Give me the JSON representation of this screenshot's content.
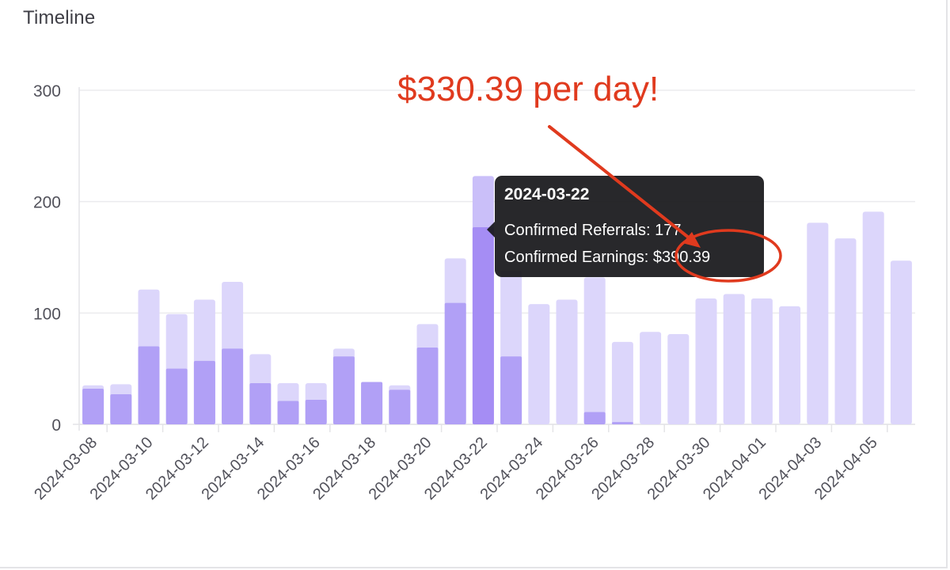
{
  "panel": {
    "title": "Timeline"
  },
  "chart_data": {
    "type": "bar",
    "stacked_overlap": true,
    "categories": [
      "2024-03-08",
      "2024-03-09",
      "2024-03-10",
      "2024-03-11",
      "2024-03-12",
      "2024-03-13",
      "2024-03-14",
      "2024-03-15",
      "2024-03-16",
      "2024-03-17",
      "2024-03-18",
      "2024-03-19",
      "2024-03-20",
      "2024-03-21",
      "2024-03-22",
      "2024-03-23",
      "2024-03-24",
      "2024-03-25",
      "2024-03-26",
      "2024-03-27",
      "2024-03-28",
      "2024-03-29",
      "2024-03-30",
      "2024-03-31",
      "2024-04-01",
      "2024-04-02",
      "2024-04-03",
      "2024-04-04",
      "2024-04-05",
      "2024-04-06"
    ],
    "tick_labels": [
      "2024-03-08",
      "2024-03-10",
      "2024-03-12",
      "2024-03-14",
      "2024-03-16",
      "2024-03-18",
      "2024-03-20",
      "2024-03-22",
      "2024-03-24",
      "2024-03-26",
      "2024-03-28",
      "2024-03-30",
      "2024-04-01",
      "2024-04-03",
      "2024-04-05"
    ],
    "series": [
      {
        "values": [
          35,
          36,
          121,
          99,
          112,
          128,
          63,
          37,
          37,
          68,
          38,
          35,
          90,
          149,
          223,
          138,
          108,
          112,
          132,
          74,
          83,
          81,
          113,
          117,
          113,
          106,
          181,
          167,
          191,
          147
        ]
      },
      {
        "values": [
          32,
          27,
          70,
          50,
          57,
          68,
          37,
          21,
          22,
          61,
          38,
          31,
          69,
          109,
          177,
          61,
          0,
          0,
          11,
          2,
          0,
          0,
          0,
          0,
          0,
          0,
          0,
          0,
          0,
          0
        ]
      }
    ],
    "colors": {
      "light": "#dcd6fb",
      "dark": "#b1a0f6",
      "highlight_light": "#cabff9",
      "highlight_dark": "#a58df4"
    },
    "ylim": [
      0,
      300
    ],
    "yticks": [
      0,
      100,
      200,
      300
    ],
    "highlight_index": 14,
    "grid": true
  },
  "tooltip": {
    "title": "2024-03-22",
    "row1_label": "Confirmed Referrals",
    "row1_value": "177",
    "row2_label": "Confirmed Earnings",
    "row2_value": "$390.39"
  },
  "annotation": {
    "text": "$330.39 per day!",
    "color": "#e03a1e"
  }
}
